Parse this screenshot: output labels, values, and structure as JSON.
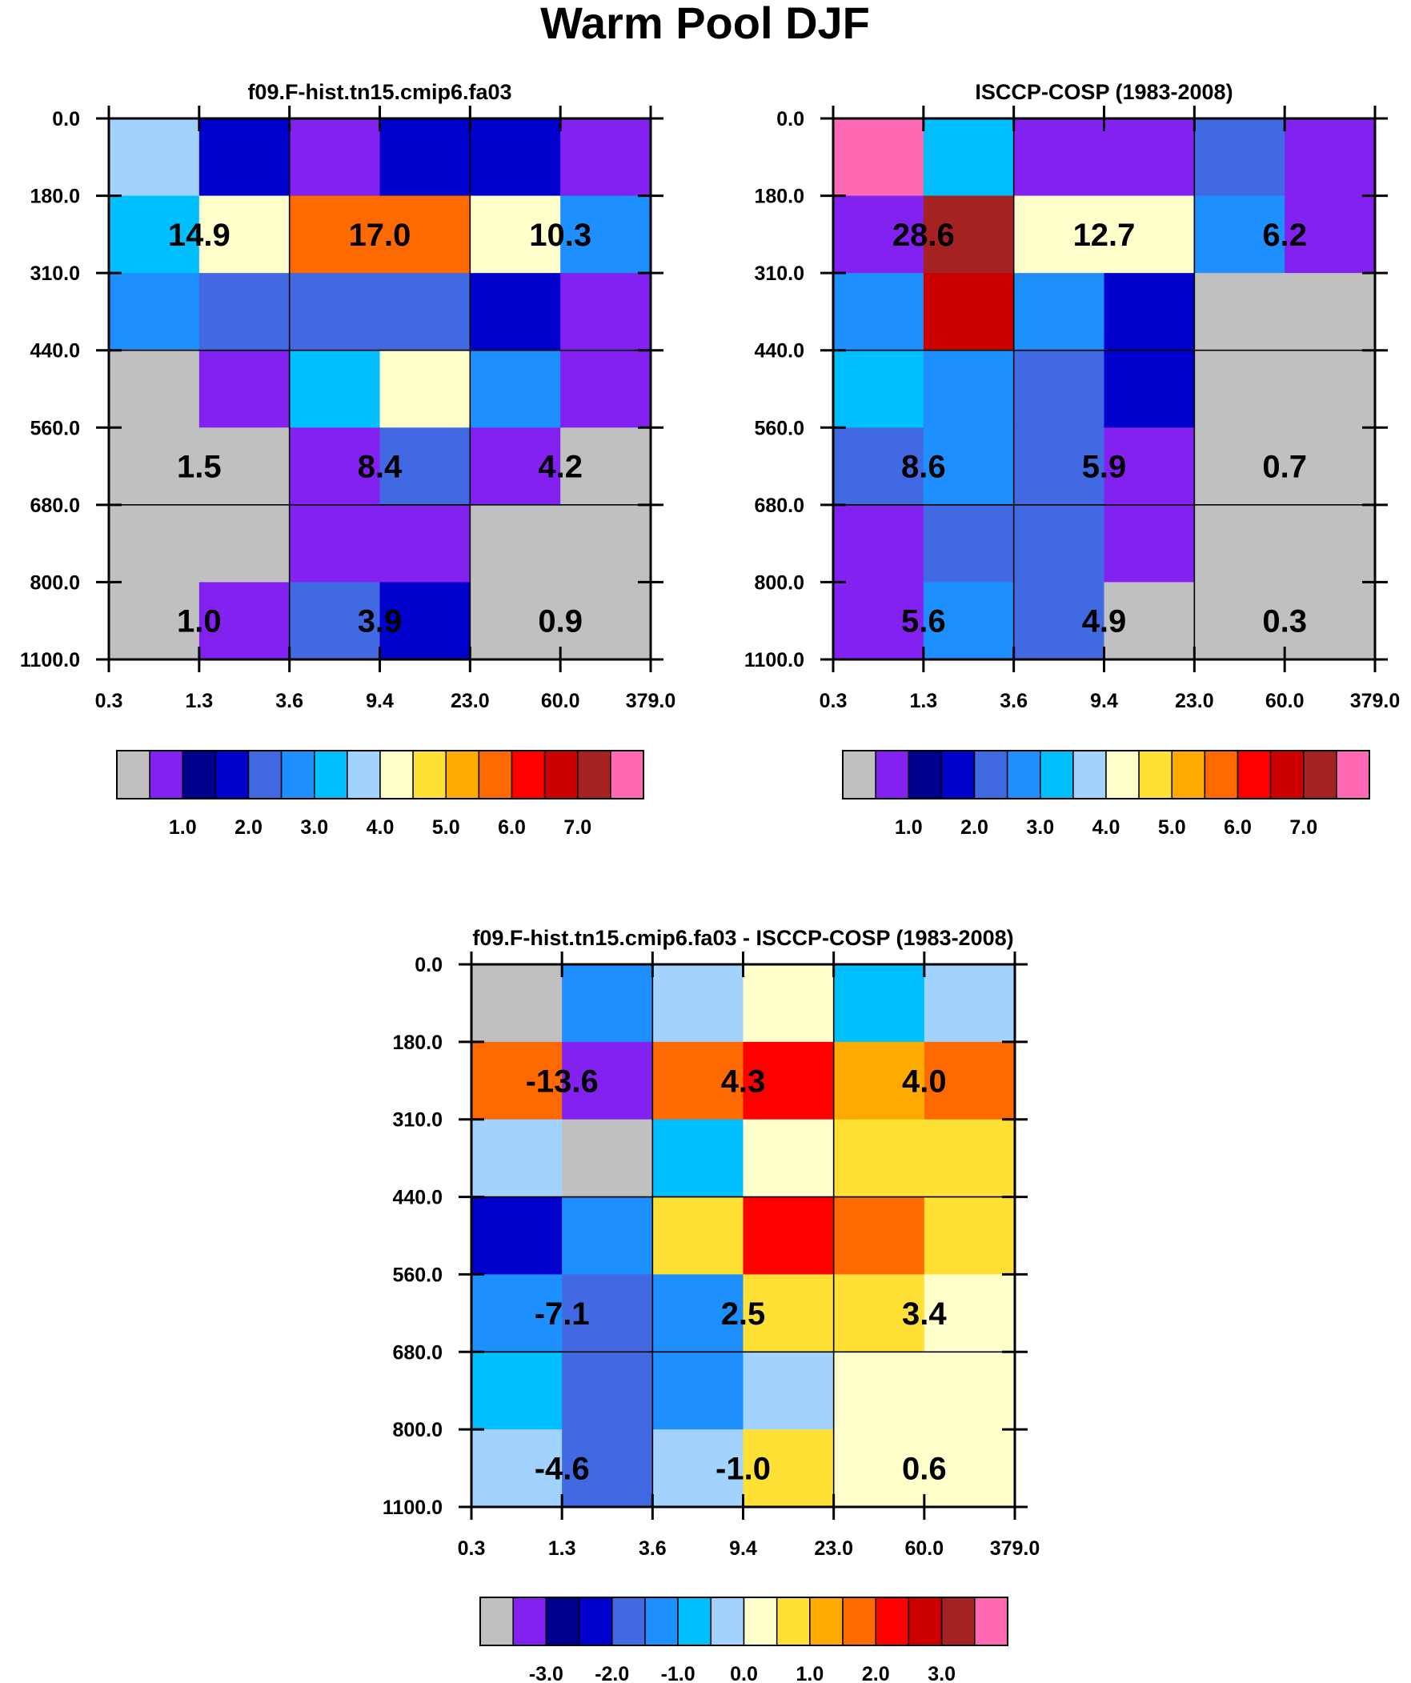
{
  "chart_data": {
    "type": "heatmap",
    "title": "Warm Pool DJF",
    "legend_placement": "below each panel",
    "x_ticks": [
      "0.3",
      "1.3",
      "3.6",
      "9.4",
      "23.0",
      "60.0",
      "379.0"
    ],
    "y_ticks": [
      "0.0",
      "180.0",
      "310.0",
      "440.0",
      "560.0",
      "680.0",
      "800.0",
      "1100.0"
    ],
    "panels": [
      {
        "key": "model",
        "title": "f09.F-hist.tn15.cmip6.fa03",
        "rows": [
          [
            3.6,
            1.6,
            0.7,
            1.6,
            1.6,
            0.7
          ],
          [
            3.1,
            4.1,
            5.7,
            5.7,
            4.1,
            2.6
          ],
          [
            2.6,
            2.2,
            2.2,
            2.2,
            1.6,
            0.7
          ],
          [
            0.0,
            0.7,
            3.1,
            4.1,
            2.6,
            0.7
          ],
          [
            0.0,
            0.0,
            0.7,
            2.2,
            0.7,
            0.0
          ],
          [
            0.0,
            0.0,
            0.7,
            0.7,
            0.0,
            0.0
          ],
          [
            0.0,
            0.7,
            2.2,
            1.6,
            0.0,
            0.0
          ]
        ],
        "cloud_type_totals": [
          {
            "label": "14.9",
            "row": 1,
            "col": 0
          },
          {
            "label": "17.0",
            "row": 1,
            "col": 1
          },
          {
            "label": "10.3",
            "row": 1,
            "col": 2
          },
          {
            "label": "1.5",
            "row": 4,
            "col": 0
          },
          {
            "label": "8.4",
            "row": 4,
            "col": 1
          },
          {
            "label": "4.2",
            "row": 4,
            "col": 2
          },
          {
            "label": "1.0",
            "row": 6,
            "col": 0
          },
          {
            "label": "3.9",
            "row": 6,
            "col": 1
          },
          {
            "label": "0.9",
            "row": 6,
            "col": 2
          }
        ],
        "colorbar_labels": [
          "1.0",
          "2.0",
          "3.0",
          "4.0",
          "5.0",
          "6.0",
          "7.0"
        ]
      },
      {
        "key": "obs",
        "title": "ISCCP-COSP (1983-2008)",
        "rows": [
          [
            7.8,
            3.1,
            0.7,
            0.7,
            2.2,
            0.7
          ],
          [
            0.7,
            7.2,
            4.1,
            4.1,
            2.6,
            0.7
          ],
          [
            2.6,
            6.7,
            2.6,
            1.6,
            0.0,
            0.0
          ],
          [
            3.1,
            2.6,
            2.2,
            1.6,
            0.0,
            0.0
          ],
          [
            2.2,
            2.6,
            2.2,
            0.7,
            0.0,
            0.0
          ],
          [
            0.7,
            2.2,
            2.2,
            0.7,
            0.0,
            0.0
          ],
          [
            0.7,
            2.6,
            2.2,
            0.0,
            0.0,
            0.0
          ]
        ],
        "cloud_type_totals": [
          {
            "label": "28.6",
            "row": 1,
            "col": 0
          },
          {
            "label": "12.7",
            "row": 1,
            "col": 1
          },
          {
            "label": "6.2",
            "row": 1,
            "col": 2
          },
          {
            "label": "8.6",
            "row": 4,
            "col": 0
          },
          {
            "label": "5.9",
            "row": 4,
            "col": 1
          },
          {
            "label": "0.7",
            "row": 4,
            "col": 2
          },
          {
            "label": "5.6",
            "row": 6,
            "col": 0
          },
          {
            "label": "4.9",
            "row": 6,
            "col": 1
          },
          {
            "label": "0.3",
            "row": 6,
            "col": 2
          }
        ],
        "colorbar_labels": [
          "1.0",
          "2.0",
          "3.0",
          "4.0",
          "5.0",
          "6.0",
          "7.0"
        ]
      },
      {
        "key": "diff",
        "title": "f09.F-hist.tn15.cmip6.fa03 - ISCCP-COSP (1983-2008)",
        "rows": [
          [
            -3.8,
            -1.3,
            -0.2,
            0.2,
            -0.8,
            -0.2
          ],
          [
            1.7,
            -3.3,
            1.7,
            2.3,
            1.3,
            1.7
          ],
          [
            -0.2,
            -3.8,
            -0.8,
            0.2,
            0.8,
            0.8
          ],
          [
            -2.3,
            -1.3,
            0.8,
            2.3,
            1.7,
            0.8
          ],
          [
            -1.3,
            -1.8,
            -1.3,
            0.8,
            0.8,
            0.2
          ],
          [
            -0.8,
            -1.8,
            -1.3,
            -0.2,
            0.2,
            0.2
          ],
          [
            -0.2,
            -1.8,
            -0.2,
            0.8,
            0.2,
            0.2
          ]
        ],
        "cloud_type_totals": [
          {
            "label": "-13.6",
            "row": 1,
            "col": 0
          },
          {
            "label": "4.3",
            "row": 1,
            "col": 1
          },
          {
            "label": "4.0",
            "row": 1,
            "col": 2
          },
          {
            "label": "-7.1",
            "row": 4,
            "col": 0
          },
          {
            "label": "2.5",
            "row": 4,
            "col": 1
          },
          {
            "label": "3.4",
            "row": 4,
            "col": 2
          },
          {
            "label": "-4.6",
            "row": 6,
            "col": 0
          },
          {
            "label": "-1.0",
            "row": 6,
            "col": 1
          },
          {
            "label": "0.6",
            "row": 6,
            "col": 2
          }
        ],
        "colorbar_labels": [
          "-3.0",
          "-2.0",
          "-1.0",
          "0.0",
          "1.0",
          "2.0",
          "3.0"
        ]
      }
    ],
    "colorbar_colors": [
      "#c0c0c0",
      "#8322f0",
      "#00008f",
      "#0000cc",
      "#4169e1",
      "#1e8fff",
      "#00bfff",
      "#a2d3ff",
      "#ffffcc",
      "#ffe135",
      "#ffaa00",
      "#ff6a00",
      "#ff0000",
      "#cc0000",
      "#a52222",
      "#ff69b4"
    ],
    "colorbar_levels_abs": [
      0.5,
      1.0,
      1.5,
      2.0,
      2.5,
      3.0,
      3.5,
      4.0,
      4.5,
      5.0,
      5.5,
      6.0,
      6.5,
      7.0,
      7.5
    ],
    "colorbar_levels_diff": [
      -3.5,
      -3.0,
      -2.5,
      -2.0,
      -1.5,
      -1.0,
      -0.5,
      0.0,
      0.5,
      1.0,
      1.5,
      2.0,
      2.5,
      3.0,
      3.5
    ]
  }
}
